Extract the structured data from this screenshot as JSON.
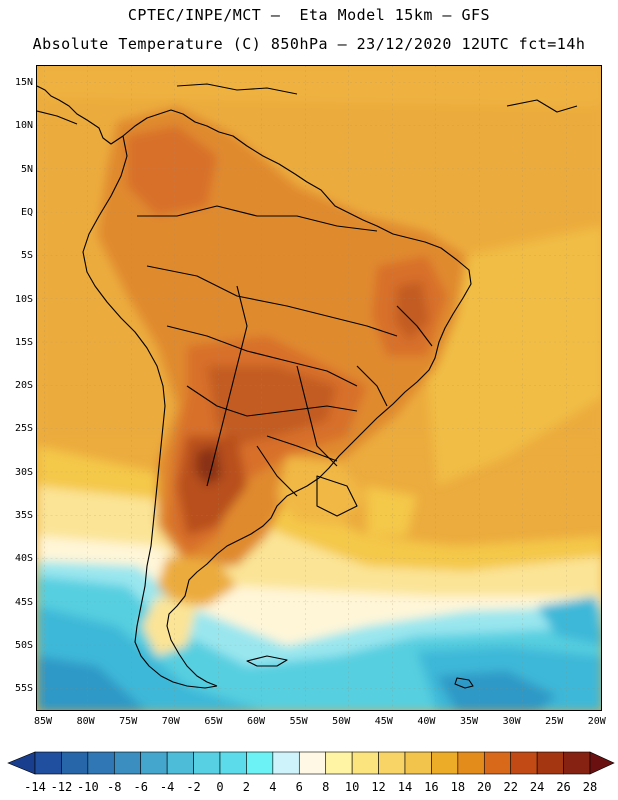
{
  "header": {
    "title_line1": "CPTEC/INPE/MCT –  Eta Model 15km – GFS",
    "title_line2": "Absolute Temperature (C) 850hPa – 23/12/2020 12UTC fct=14h"
  },
  "map": {
    "region": "South America",
    "lat_labels": [
      "15N",
      "10N",
      "5N",
      "EQ",
      "5S",
      "10S",
      "15S",
      "20S",
      "25S",
      "30S",
      "35S",
      "40S",
      "45S",
      "50S",
      "55S"
    ],
    "lon_labels": [
      "85W",
      "80W",
      "75W",
      "70W",
      "65W",
      "60W",
      "55W",
      "50W",
      "45W",
      "40W",
      "35W",
      "30W",
      "25W",
      "20W"
    ],
    "colors": {
      "ocean_default": "#ecac3e",
      "hot": "#e08a2e",
      "hotter": "#d8702a",
      "hottest": "#b8501e",
      "extreme": "#8a3214",
      "warm_yellow": "#f4c84a",
      "pale_yellow": "#fbe496",
      "cream": "#fff6d8",
      "cool_cyan": "#9ae6ee",
      "cyan": "#56cfe0",
      "teal": "#3cb8d8",
      "deep_teal": "#2e98c6",
      "coastline": "#000000"
    }
  },
  "colorbar": {
    "labels": [
      "-14",
      "-12",
      "-10",
      "-8",
      "-6",
      "-4",
      "-2",
      "0",
      "2",
      "4",
      "6",
      "8",
      "10",
      "12",
      "14",
      "16",
      "18",
      "20",
      "22",
      "24",
      "26",
      "28"
    ],
    "colors": [
      "#1a3e8e",
      "#1f4f9e",
      "#2866aa",
      "#3078b5",
      "#3a8ec0",
      "#44a6cc",
      "#4cbcd8",
      "#56d0e2",
      "#5cdcea",
      "#6cf2f4",
      "#cff3fb",
      "#fff8e4",
      "#fff3a4",
      "#fbe37e",
      "#f8d466",
      "#f2c44c",
      "#ecac28",
      "#e38c1c",
      "#d8681a",
      "#c24a14",
      "#a43612",
      "#862212",
      "#6a1010"
    ]
  }
}
